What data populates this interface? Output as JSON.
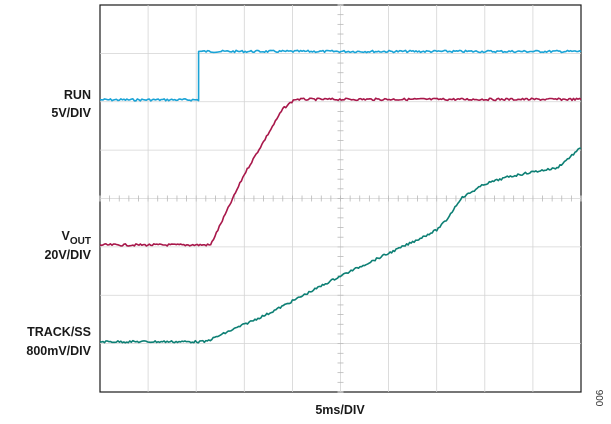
{
  "chart_data": {
    "type": "line",
    "title": "",
    "xlabel": "5ms/DIV",
    "figure_number": "006",
    "grid": true,
    "divisions": {
      "x": 10,
      "y": 8
    },
    "x_unit": "div",
    "xlim": [
      0,
      10
    ],
    "ylim": [
      0,
      8
    ],
    "channel_labels": [
      {
        "name": "RUN",
        "scale": "5V/DIV"
      },
      {
        "name": "V",
        "subscript": "OUT",
        "scale": "20V/DIV"
      },
      {
        "name": "TRACK/SS",
        "scale": "800mV/DIV"
      }
    ],
    "series": [
      {
        "name": "RUN",
        "color": "#1aa3d6",
        "points": [
          [
            0,
            6.04
          ],
          [
            2.05,
            6.04
          ],
          [
            2.05,
            7.04
          ],
          [
            10,
            7.04
          ]
        ]
      },
      {
        "name": "VOUT",
        "color": "#a8174a",
        "points": [
          [
            0,
            3.04
          ],
          [
            2.3,
            3.04
          ],
          [
            2.45,
            3.35
          ],
          [
            3.0,
            4.5
          ],
          [
            3.8,
            5.85
          ],
          [
            4.05,
            6.05
          ],
          [
            10,
            6.05
          ]
        ]
      },
      {
        "name": "TRACK/SS",
        "color": "#0d7f74",
        "points": [
          [
            0,
            1.04
          ],
          [
            2.2,
            1.04
          ],
          [
            3.5,
            1.62
          ],
          [
            5.0,
            2.4
          ],
          [
            6.5,
            3.1
          ],
          [
            7.0,
            3.35
          ],
          [
            7.2,
            3.55
          ],
          [
            7.5,
            4.0
          ],
          [
            8.0,
            4.3
          ],
          [
            8.5,
            4.45
          ],
          [
            9.0,
            4.55
          ],
          [
            9.5,
            4.63
          ],
          [
            10,
            5.05
          ]
        ]
      }
    ]
  }
}
